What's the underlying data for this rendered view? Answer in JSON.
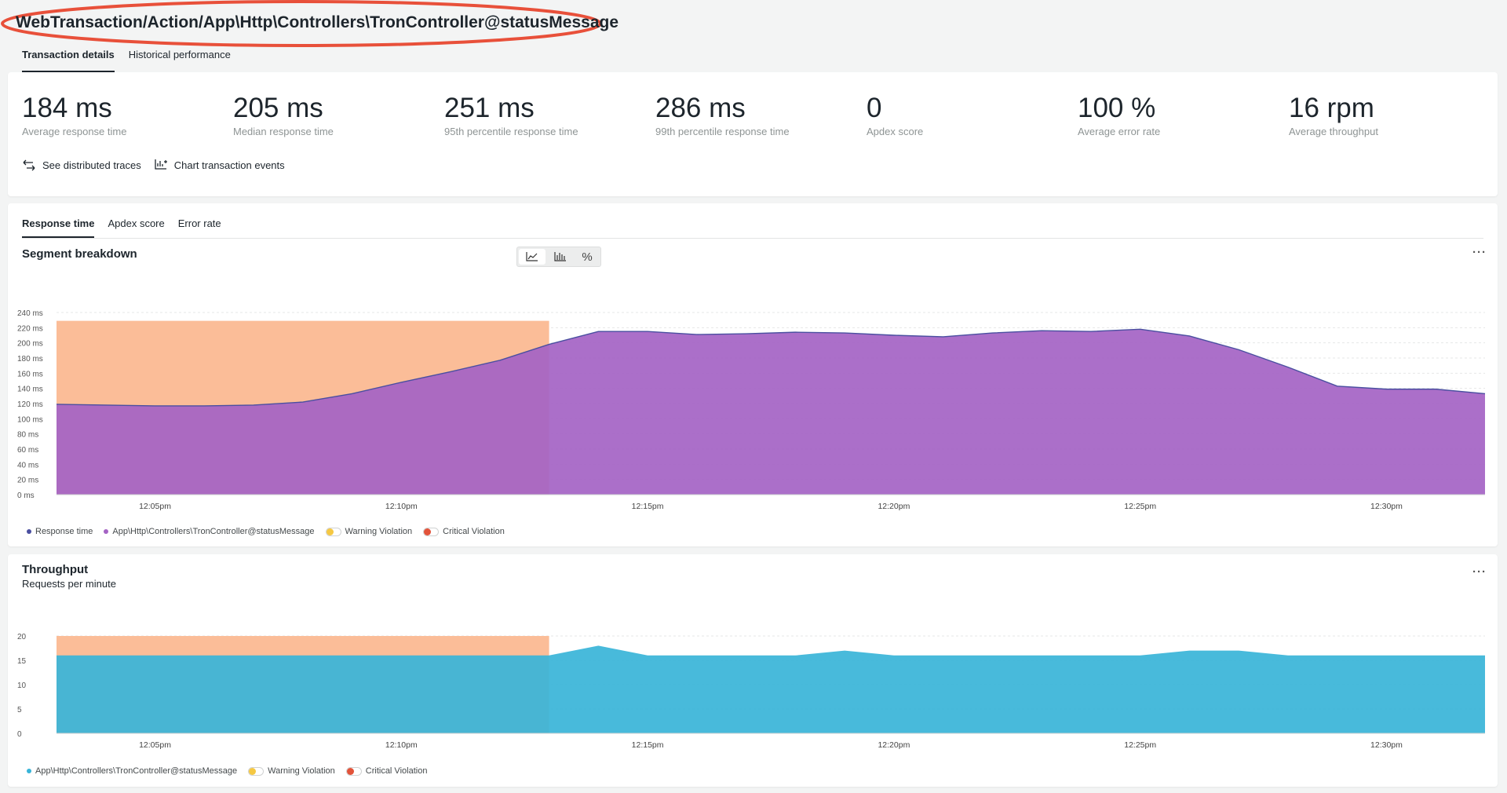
{
  "title": "WebTransaction/Action/App\\Http\\Controllers\\TronController@statusMessage",
  "top_tabs": [
    {
      "label": "Transaction details",
      "active": true
    },
    {
      "label": "Historical performance",
      "active": false
    }
  ],
  "metrics": [
    {
      "value": "184 ms",
      "label": "Average response time"
    },
    {
      "value": "205 ms",
      "label": "Median response time"
    },
    {
      "value": "251 ms",
      "label": "95th percentile response time"
    },
    {
      "value": "286 ms",
      "label": "99th percentile response time"
    },
    {
      "value": "0",
      "label": "Apdex score"
    },
    {
      "value": "100 %",
      "label": "Average error rate"
    },
    {
      "value": "16 rpm",
      "label": "Average throughput"
    }
  ],
  "actions": [
    {
      "label": "See distributed traces",
      "icon": "distributed-traces-icon"
    },
    {
      "label": "Chart transaction events",
      "icon": "chart-events-icon"
    }
  ],
  "chart_tabs": [
    {
      "label": "Response time",
      "active": true
    },
    {
      "label": "Apdex score",
      "active": false
    },
    {
      "label": "Error rate",
      "active": false
    }
  ],
  "view_toggle": [
    "area-chart-icon",
    "bar-chart-icon",
    "percent-icon"
  ],
  "more_label": "···",
  "colors": {
    "response_line": "#4a4fa0",
    "segment_fill": "#a463c4",
    "throughput_fill": "#38b4d8",
    "violation_fill": "#fbbd98",
    "warning": "#f5c843",
    "critical": "#e2533a"
  },
  "chart_data": [
    {
      "type": "area",
      "title": "Segment breakdown",
      "x_ticks": [
        "12:05pm",
        "12:10pm",
        "12:15pm",
        "12:20pm",
        "12:25pm",
        "12:30pm"
      ],
      "y_ticks": [
        "240 ms",
        "220 ms",
        "200 ms",
        "180 ms",
        "160 ms",
        "140 ms",
        "120 ms",
        "100 ms",
        "80 ms",
        "60 ms",
        "40 ms",
        "20 ms",
        "0 ms"
      ],
      "ylim": [
        0,
        240
      ],
      "x_minutes": [
        "12:03pm",
        "12:04pm",
        "12:05pm",
        "12:06pm",
        "12:07pm",
        "12:08pm",
        "12:09pm",
        "12:10pm",
        "12:11pm",
        "12:12pm",
        "12:13pm",
        "12:14pm",
        "12:15pm",
        "12:16pm",
        "12:17pm",
        "12:18pm",
        "12:19pm",
        "12:20pm",
        "12:21pm",
        "12:22pm",
        "12:23pm",
        "12:24pm",
        "12:25pm",
        "12:26pm",
        "12:27pm",
        "12:28pm",
        "12:29pm",
        "12:30pm",
        "12:31pm",
        "12:32pm"
      ],
      "series": [
        {
          "name": "App\\Http\\Controllers\\TronController@statusMessage",
          "values": [
            119,
            118,
            117,
            117,
            118,
            122,
            133,
            148,
            162,
            177,
            198,
            215,
            215,
            211,
            212,
            214,
            213,
            210,
            208,
            213,
            216,
            215,
            218,
            209,
            191,
            168,
            143,
            139,
            139,
            133
          ]
        }
      ],
      "violation": {
        "from": "12:03pm",
        "to": "12:12pm",
        "value": 229
      },
      "legend": [
        {
          "label": "Response time",
          "kind": "dot",
          "color": "#4a4fa0"
        },
        {
          "label": "App\\Http\\Controllers\\TronController@statusMessage",
          "kind": "dot",
          "color": "#a463c4"
        },
        {
          "label": "Warning Violation",
          "kind": "toggle",
          "color": "#f5c843"
        },
        {
          "label": "Critical Violation",
          "kind": "toggle",
          "color": "#e2533a"
        }
      ]
    },
    {
      "type": "area",
      "title": "Throughput",
      "subtitle": "Requests per minute",
      "x_ticks": [
        "12:05pm",
        "12:10pm",
        "12:15pm",
        "12:20pm",
        "12:25pm",
        "12:30pm"
      ],
      "y_ticks": [
        "20",
        "15",
        "10",
        "5",
        "0"
      ],
      "ylim": [
        0,
        20
      ],
      "x_minutes": [
        "12:03pm",
        "12:04pm",
        "12:05pm",
        "12:06pm",
        "12:07pm",
        "12:08pm",
        "12:09pm",
        "12:10pm",
        "12:11pm",
        "12:12pm",
        "12:13pm",
        "12:14pm",
        "12:15pm",
        "12:16pm",
        "12:17pm",
        "12:18pm",
        "12:19pm",
        "12:20pm",
        "12:21pm",
        "12:22pm",
        "12:23pm",
        "12:24pm",
        "12:25pm",
        "12:26pm",
        "12:27pm",
        "12:28pm",
        "12:29pm",
        "12:30pm",
        "12:31pm",
        "12:32pm"
      ],
      "series": [
        {
          "name": "App\\Http\\Controllers\\TronController@statusMessage",
          "values": [
            16,
            16,
            16,
            16,
            16,
            16,
            16,
            16,
            16,
            16,
            16,
            18,
            16,
            16,
            16,
            16,
            17,
            16,
            16,
            16,
            16,
            16,
            16,
            17,
            17,
            16,
            16,
            16,
            16,
            16
          ]
        }
      ],
      "violation": {
        "from": "12:03pm",
        "to": "12:12pm",
        "value": 20
      },
      "legend": [
        {
          "label": "App\\Http\\Controllers\\TronController@statusMessage",
          "kind": "dot",
          "color": "#38b4d8"
        },
        {
          "label": "Warning Violation",
          "kind": "toggle",
          "color": "#f5c843"
        },
        {
          "label": "Critical Violation",
          "kind": "toggle",
          "color": "#e2533a"
        }
      ]
    }
  ]
}
